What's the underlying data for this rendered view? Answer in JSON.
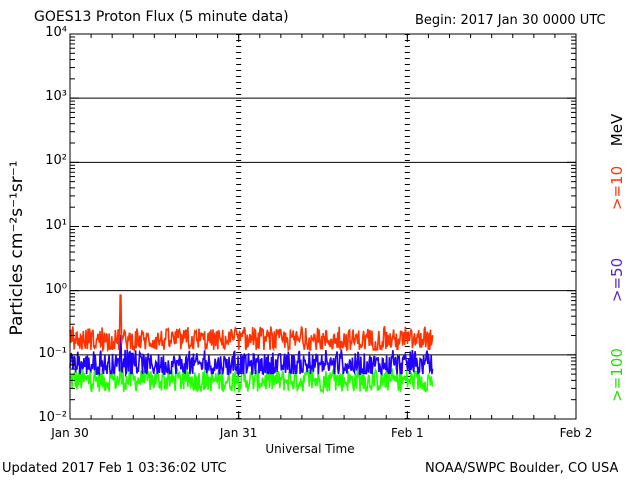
{
  "header": {
    "title": "GOES13 Proton Flux (5 minute data)",
    "begin": "Begin: 2017 Jan 30 0000 UTC"
  },
  "footer": {
    "updated": "Updated 2017 Feb  1 03:36:02 UTC",
    "credit": "NOAA/SWPC Boulder, CO USA"
  },
  "right_labels": {
    "unit": "MeV",
    "ge10": ">=10",
    "ge50": ">=50",
    "ge100": ">=100"
  },
  "colors": {
    "ge10": "#ff3300",
    "ge50": "#2200ff",
    "ge100": "#22ff00",
    "ge50_label": "#5522cc",
    "ge100_label": "#22dd00"
  },
  "chart_data": {
    "type": "line",
    "title": "GOES13 Proton Flux (5 minute data)",
    "xlabel": "Universal Time",
    "ylabel": "Particles cm⁻²s⁻¹sr⁻¹",
    "yscale": "log",
    "ylim": [
      0.01,
      10000
    ],
    "xlim_days": [
      0,
      3
    ],
    "x_ticks": [
      {
        "day": 0,
        "label": "Jan 30"
      },
      {
        "day": 1,
        "label": "Jan 31"
      },
      {
        "day": 2,
        "label": "Feb 1"
      },
      {
        "day": 3,
        "label": "Feb 2"
      }
    ],
    "y_ticks": [
      {
        "exp": -2,
        "label": "10⁻²"
      },
      {
        "exp": -1,
        "label": "10⁻¹"
      },
      {
        "exp": 0,
        "label": "10⁰"
      },
      {
        "exp": 1,
        "label": "10¹"
      },
      {
        "exp": 2,
        "label": "10²"
      },
      {
        "exp": 3,
        "label": "10³"
      },
      {
        "exp": 4,
        "label": "10⁴"
      }
    ],
    "threshold_dashed_at": 10,
    "data_end_day": 2.15,
    "series": [
      {
        "name": ">=10 MeV",
        "key": "ge10",
        "typical": 0.17,
        "min": 0.12,
        "max": 0.28,
        "peak": {
          "day": 0.3,
          "value": 0.85
        }
      },
      {
        "name": ">=50 MeV",
        "key": "ge50",
        "typical": 0.07,
        "min": 0.05,
        "max": 0.12,
        "peak": {
          "day": 0.3,
          "value": 0.2
        }
      },
      {
        "name": ">=100 MeV",
        "key": "ge100",
        "typical": 0.04,
        "min": 0.025,
        "max": 0.06,
        "peak": {
          "day": 0.3,
          "value": 0.065
        }
      }
    ]
  }
}
